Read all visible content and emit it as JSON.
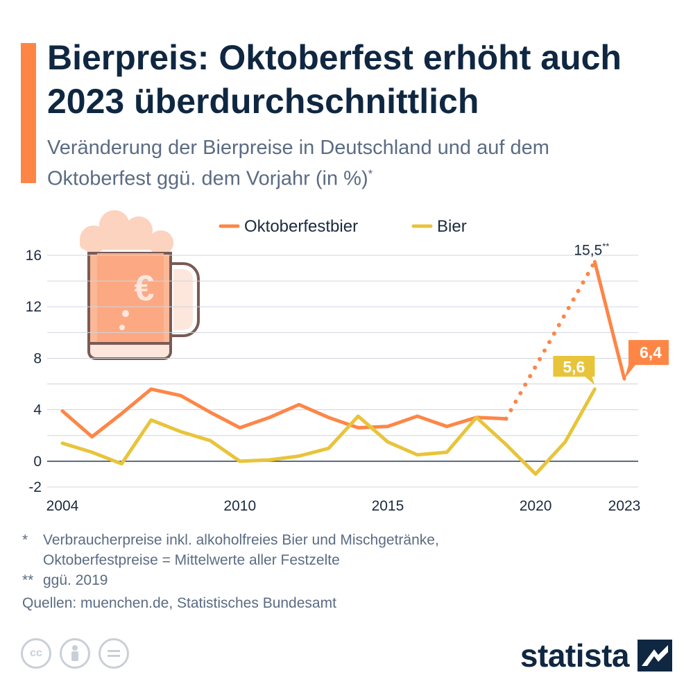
{
  "header": {
    "title": "Bierpreis: Oktoberfest erhöht auch 2023 überdurchschnittlich",
    "subtitle": "Veränderung der Bierpreise in Deutschland und auf dem Oktoberfest ggü. dem Vorjahr (in %)",
    "subtitle_mark": "*"
  },
  "colors": {
    "accent": "#fd8647",
    "oktoberfest": "#fd8647",
    "bier": "#e8c43b",
    "grid": "#cfd5dd",
    "axis_text": "#1b2a3f"
  },
  "icons": {
    "illustration": "beer-mug-euro-icon",
    "license": [
      "cc-icon",
      "attribution-icon",
      "no-derivatives-icon"
    ],
    "brand": "statista-logo-icon"
  },
  "chart_data": {
    "type": "line",
    "title": "",
    "xlabel": "",
    "ylabel": "",
    "x_ticks": [
      "2004",
      "2010",
      "2015",
      "2020",
      "2023"
    ],
    "y_ticks": [
      "16",
      "12",
      "8",
      "4",
      "0",
      "-2"
    ],
    "ylim": [
      -2,
      17
    ],
    "xlim": [
      2004,
      2023
    ],
    "grid": true,
    "legend_position": "top",
    "series": [
      {
        "name": "Oktoberfestbier",
        "x": [
          2004,
          2005,
          2006,
          2007,
          2008,
          2009,
          2010,
          2011,
          2012,
          2013,
          2014,
          2015,
          2016,
          2017,
          2018,
          2019
        ],
        "values": [
          3.9,
          1.9,
          3.7,
          5.6,
          5.1,
          3.8,
          2.6,
          3.4,
          4.4,
          3.4,
          2.6,
          2.7,
          3.5,
          2.7,
          3.4,
          3.3
        ]
      },
      {
        "name": "Oktoberfestbier 2022 ggü. 2019",
        "x": [
          2019,
          2022
        ],
        "values": [
          3.3,
          15.5
        ],
        "dashed": true
      },
      {
        "name": "Oktoberfestbier 2023",
        "x": [
          2022,
          2023
        ],
        "values": [
          15.5,
          6.4
        ]
      },
      {
        "name": "Bier",
        "x": [
          2004,
          2005,
          2006,
          2007,
          2008,
          2009,
          2010,
          2011,
          2012,
          2013,
          2014,
          2015,
          2016,
          2017,
          2018,
          2019,
          2020,
          2021,
          2022
        ],
        "values": [
          1.4,
          0.7,
          -0.2,
          3.2,
          2.3,
          1.6,
          0.0,
          0.1,
          0.4,
          1.0,
          3.5,
          1.5,
          0.5,
          0.7,
          3.4,
          1.3,
          -1.0,
          1.5,
          5.6
        ]
      }
    ],
    "annotations": {
      "peak_value": "15,5",
      "peak_mark": "**",
      "bier_label": "5,6",
      "okt_label": "6,4"
    }
  },
  "footnotes": {
    "star_mark": "*",
    "star_line1": "Verbraucherpreise inkl. alkoholfreies Bier und Mischgetränke,",
    "star_line2": "Oktoberfestpreise = Mittelwerte aller Festzelte",
    "double_mark": "**",
    "double_text": "ggü. 2019",
    "sources": "Quellen: muenchen.de, Statistisches Bundesamt"
  },
  "brand": {
    "name": "statista"
  }
}
